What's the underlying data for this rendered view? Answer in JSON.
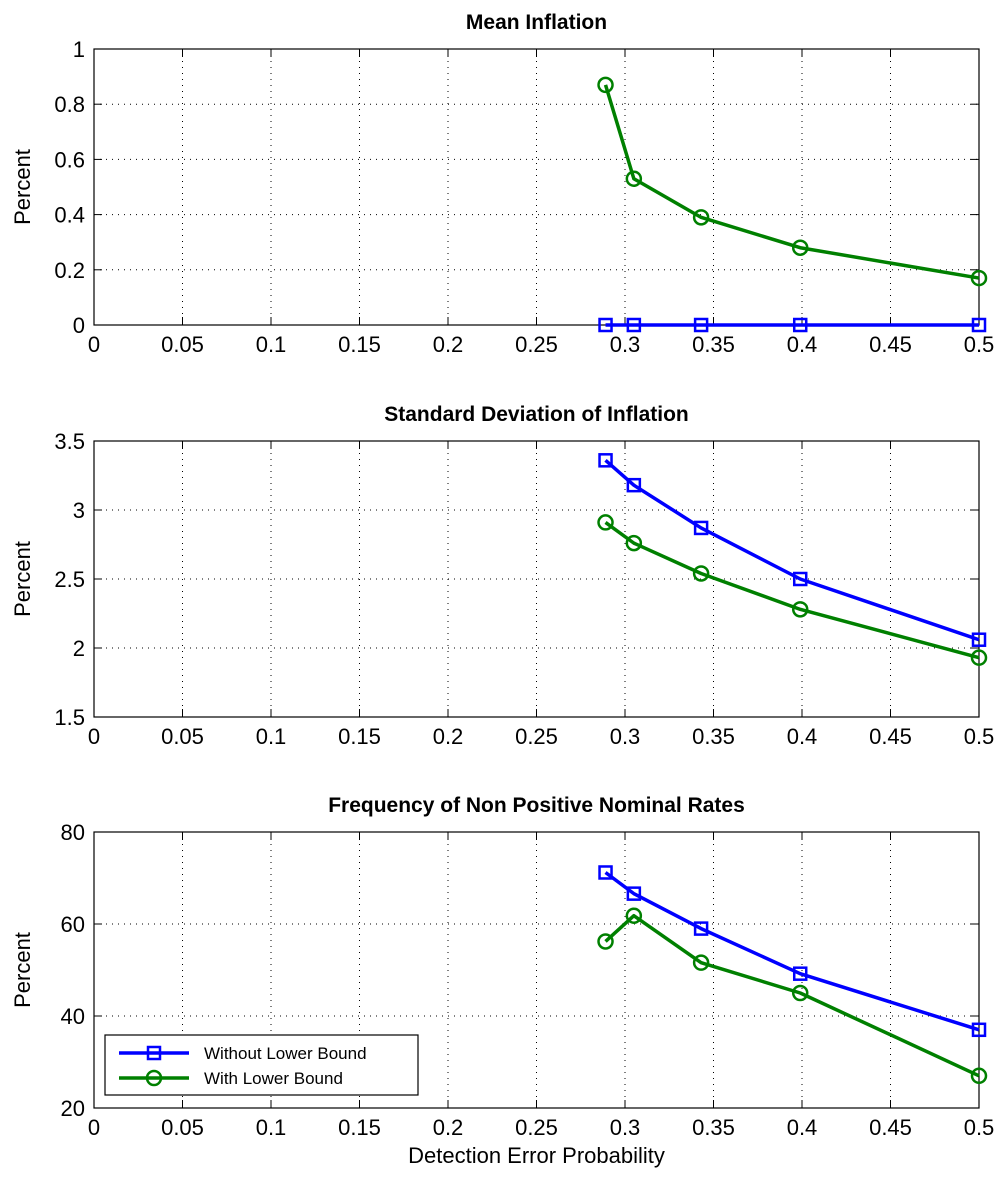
{
  "chart_data": [
    {
      "type": "line",
      "title": "Mean Inflation",
      "xlabel": "",
      "ylabel": "Percent",
      "xlim": [
        0,
        0.5
      ],
      "ylim": [
        0,
        1
      ],
      "xticks": [
        "0",
        "0.05",
        "0.1",
        "0.15",
        "0.2",
        "0.25",
        "0.3",
        "0.35",
        "0.4",
        "0.45",
        "0.5"
      ],
      "yticks": [
        "0",
        "0.2",
        "0.4",
        "0.6",
        "0.8",
        "1"
      ],
      "grid": true,
      "series": [
        {
          "name": "Without Lower Bound",
          "color": "#0000ff",
          "marker": "square",
          "x": [
            0.289,
            0.305,
            0.343,
            0.399,
            0.5
          ],
          "y": [
            0,
            0,
            0,
            0,
            0
          ]
        },
        {
          "name": "With Lower Bound",
          "color": "#008000",
          "marker": "circle",
          "x": [
            0.289,
            0.305,
            0.343,
            0.399,
            0.5
          ],
          "y": [
            0.87,
            0.53,
            0.39,
            0.28,
            0.17
          ]
        }
      ]
    },
    {
      "type": "line",
      "title": "Standard Deviation of Inflation",
      "xlabel": "",
      "ylabel": "Percent",
      "xlim": [
        0,
        0.5
      ],
      "ylim": [
        1.5,
        3.5
      ],
      "xticks": [
        "0",
        "0.05",
        "0.1",
        "0.15",
        "0.2",
        "0.25",
        "0.3",
        "0.35",
        "0.4",
        "0.45",
        "0.5"
      ],
      "yticks": [
        "1.5",
        "2",
        "2.5",
        "3",
        "3.5"
      ],
      "grid": true,
      "series": [
        {
          "name": "Without Lower Bound",
          "color": "#0000ff",
          "marker": "square",
          "x": [
            0.289,
            0.305,
            0.343,
            0.399,
            0.5
          ],
          "y": [
            3.36,
            3.18,
            2.87,
            2.5,
            2.06
          ]
        },
        {
          "name": "With Lower Bound",
          "color": "#008000",
          "marker": "circle",
          "x": [
            0.289,
            0.305,
            0.343,
            0.399,
            0.5
          ],
          "y": [
            2.91,
            2.76,
            2.54,
            2.28,
            1.93
          ]
        }
      ]
    },
    {
      "type": "line",
      "title": "Frequency of Non Positive Nominal Rates",
      "xlabel": "Detection Error Probability",
      "ylabel": "Percent",
      "xlim": [
        0,
        0.5
      ],
      "ylim": [
        20,
        80
      ],
      "xticks": [
        "0",
        "0.05",
        "0.1",
        "0.15",
        "0.2",
        "0.25",
        "0.3",
        "0.35",
        "0.4",
        "0.45",
        "0.5"
      ],
      "yticks": [
        "20",
        "40",
        "60",
        "80"
      ],
      "grid": true,
      "legend": {
        "position": "bottom-left",
        "entries": [
          "Without Lower Bound",
          "With Lower Bound"
        ]
      },
      "series": [
        {
          "name": "Without Lower Bound",
          "color": "#0000ff",
          "marker": "square",
          "x": [
            0.289,
            0.305,
            0.343,
            0.399,
            0.5
          ],
          "y": [
            71.2,
            66.6,
            59.0,
            49.2,
            37.0
          ]
        },
        {
          "name": "With Lower Bound",
          "color": "#008000",
          "marker": "circle",
          "x": [
            0.289,
            0.305,
            0.343,
            0.399,
            0.5
          ],
          "y": [
            56.2,
            61.8,
            51.6,
            45.0,
            27.0
          ]
        }
      ]
    }
  ]
}
